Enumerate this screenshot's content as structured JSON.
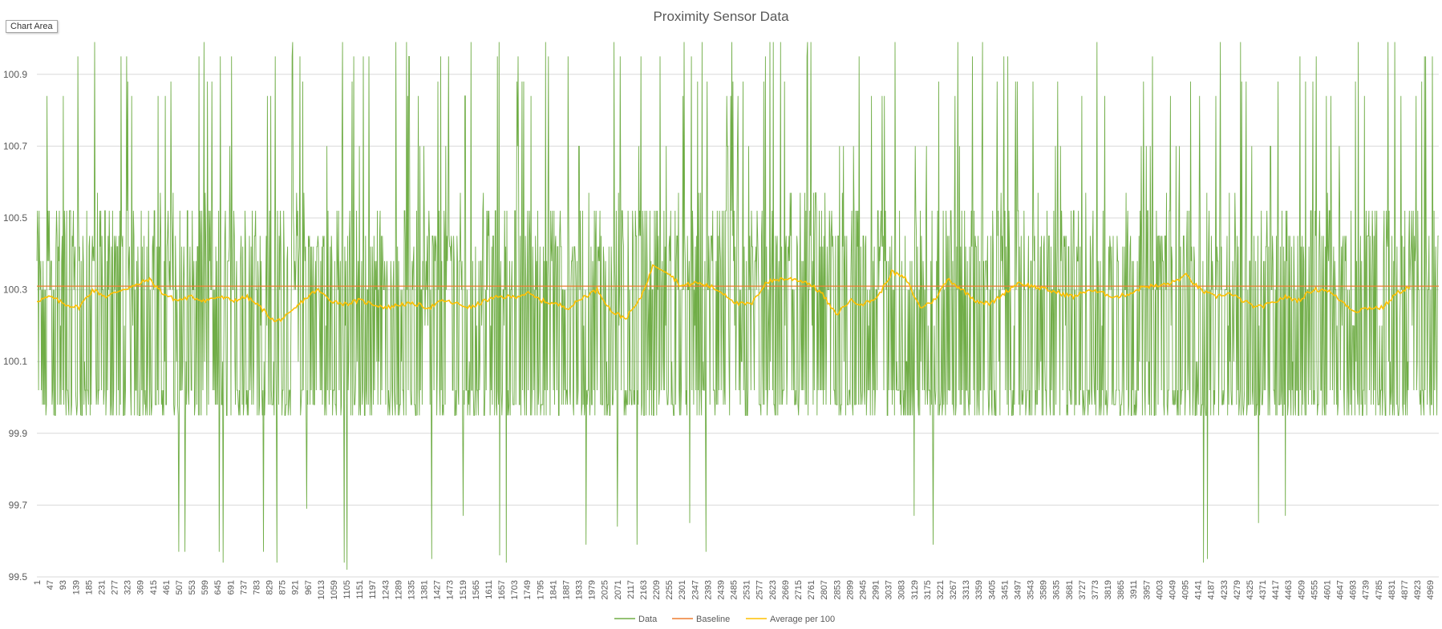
{
  "ui": {
    "chart_area_label": "Chart Area"
  },
  "colors": {
    "data": "#70ad47",
    "baseline": "#ed7d31",
    "average": "#ffc000",
    "grid": "#d9d9d9",
    "axis_text": "#595959",
    "title_text": "#595959"
  },
  "chart_data": {
    "type": "line",
    "title": "Proximity Sensor Data",
    "xlabel": "",
    "ylabel": "",
    "ylim": [
      99.5,
      101.0
    ],
    "yticks": [
      99.5,
      99.7,
      99.9,
      100.1,
      100.3,
      100.5,
      100.7,
      100.9
    ],
    "grid": true,
    "legend_position": "bottom",
    "x_count": 5000,
    "x_tick_start": 1,
    "x_tick_step": 46,
    "x_tick_labels_shown": "1, 47, 93, ... 4969",
    "series": [
      {
        "name": "Data",
        "type": "line",
        "level_values": [
          99.95,
          99.98,
          100.02,
          100.1,
          100.2,
          100.3,
          100.38,
          100.42,
          100.45,
          100.52,
          100.57,
          100.7,
          100.84,
          100.88,
          100.95,
          100.99
        ],
        "min_value": 99.52,
        "max_value": 100.99,
        "low_spikes": [
          {
            "x": 508,
            "y": 99.57
          },
          {
            "x": 530,
            "y": 99.57
          },
          {
            "x": 651,
            "y": 99.57
          },
          {
            "x": 665,
            "y": 99.54
          },
          {
            "x": 809,
            "y": 99.57
          },
          {
            "x": 857,
            "y": 99.54
          },
          {
            "x": 964,
            "y": 99.69
          },
          {
            "x": 1097,
            "y": 99.54
          },
          {
            "x": 1107,
            "y": 99.52
          },
          {
            "x": 1410,
            "y": 99.55
          },
          {
            "x": 1522,
            "y": 99.67
          },
          {
            "x": 1651,
            "y": 99.56
          },
          {
            "x": 1675,
            "y": 99.54
          },
          {
            "x": 1960,
            "y": 99.59
          },
          {
            "x": 2071,
            "y": 99.64
          },
          {
            "x": 2141,
            "y": 99.59
          },
          {
            "x": 2330,
            "y": 99.65
          },
          {
            "x": 2387,
            "y": 99.57
          },
          {
            "x": 3130,
            "y": 99.67
          },
          {
            "x": 3198,
            "y": 99.59
          },
          {
            "x": 4162,
            "y": 99.54
          },
          {
            "x": 4175,
            "y": 99.55
          },
          {
            "x": 4358,
            "y": 99.65
          },
          {
            "x": 4454,
            "y": 99.67
          }
        ]
      },
      {
        "name": "Baseline",
        "type": "line",
        "value": 100.31
      },
      {
        "name": "Average per 100",
        "type": "line",
        "x": [
          1,
          50,
          100,
          150,
          200,
          250,
          300,
          350,
          400,
          450,
          500,
          550,
          600,
          650,
          700,
          750,
          800,
          850,
          900,
          950,
          1000,
          1050,
          1100,
          1150,
          1200,
          1250,
          1300,
          1350,
          1400,
          1450,
          1500,
          1550,
          1600,
          1650,
          1700,
          1750,
          1800,
          1850,
          1900,
          1950,
          2000,
          2050,
          2100,
          2150,
          2200,
          2250,
          2300,
          2350,
          2400,
          2450,
          2500,
          2550,
          2600,
          2650,
          2700,
          2750,
          2800,
          2850,
          2900,
          2950,
          3000,
          3050,
          3100,
          3150,
          3200,
          3250,
          3300,
          3350,
          3400,
          3450,
          3500,
          3550,
          3600,
          3650,
          3700,
          3750,
          3800,
          3850,
          3900,
          3950,
          4000,
          4050,
          4100,
          4150,
          4200,
          4250,
          4300,
          4350,
          4400,
          4450,
          4500,
          4550,
          4600,
          4650,
          4700,
          4750,
          4800,
          4850,
          4900
        ],
        "values": [
          100.27,
          100.28,
          100.26,
          100.25,
          100.3,
          100.28,
          100.3,
          100.31,
          100.33,
          100.29,
          100.27,
          100.28,
          100.27,
          100.28,
          100.27,
          100.28,
          100.25,
          100.21,
          100.23,
          100.27,
          100.3,
          100.27,
          100.26,
          100.27,
          100.26,
          100.25,
          100.26,
          100.26,
          100.25,
          100.27,
          100.26,
          100.25,
          100.27,
          100.28,
          100.28,
          100.29,
          100.27,
          100.26,
          100.25,
          100.28,
          100.3,
          100.24,
          100.22,
          100.27,
          100.37,
          100.35,
          100.31,
          100.32,
          100.31,
          100.29,
          100.26,
          100.26,
          100.32,
          100.33,
          100.33,
          100.32,
          100.29,
          100.23,
          100.27,
          100.26,
          100.28,
          100.35,
          100.33,
          100.25,
          100.27,
          100.33,
          100.3,
          100.27,
          100.26,
          100.29,
          100.32,
          100.31,
          100.3,
          100.29,
          100.28,
          100.3,
          100.29,
          100.28,
          100.29,
          100.31,
          100.31,
          100.32,
          100.34,
          100.3,
          100.28,
          100.29,
          100.27,
          100.25,
          100.26,
          100.28,
          100.27,
          100.3,
          100.3,
          100.27,
          100.24,
          100.25,
          100.25,
          100.29,
          100.31
        ]
      }
    ]
  }
}
